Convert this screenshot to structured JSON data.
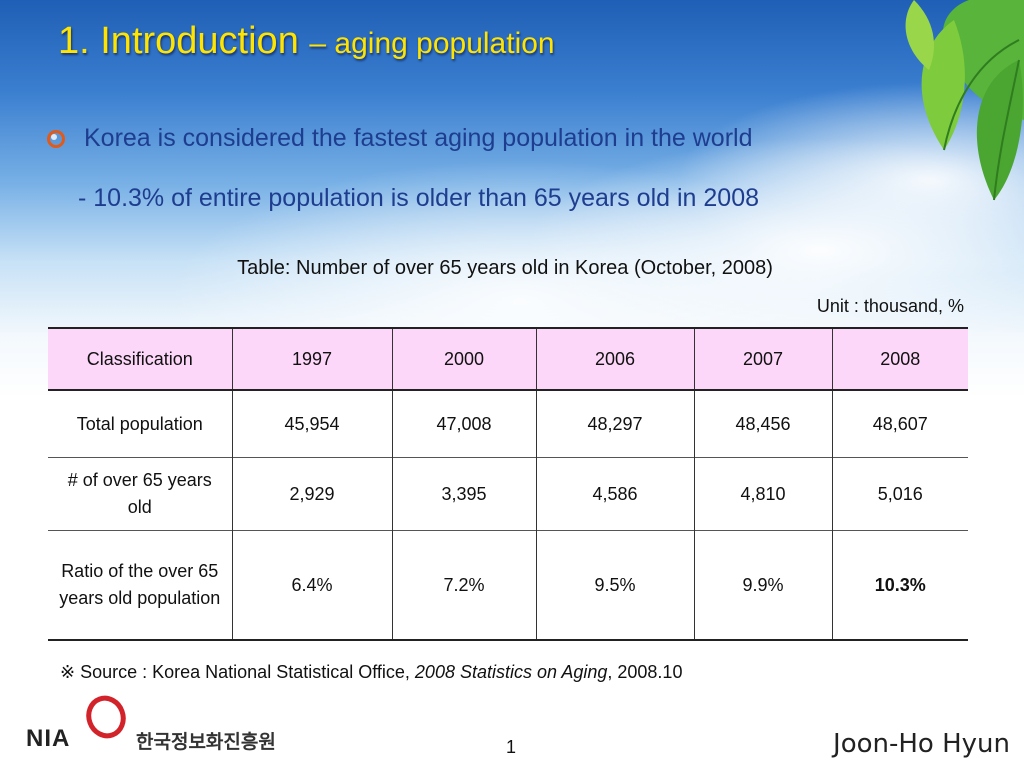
{
  "slide": {
    "title": "1. Introduction",
    "title_suffix": "– aging population",
    "bullet": "Korea is considered the fastest aging population in the world",
    "sub_bullet": "- 10.3% of entire population is older than 65 years old in 2008",
    "table_caption": "Table: Number of over 65 years old in Korea (October, 2008)",
    "unit": "Unit : thousand, %",
    "table": {
      "header": [
        "Classification",
        "1997",
        "2000",
        "2006",
        "2007",
        "2008"
      ],
      "rows": [
        [
          "Total population",
          "45,954",
          "47,008",
          "48,297",
          "48,456",
          "48,607"
        ],
        [
          "# of over 65 years old",
          "2,929",
          "3,395",
          "4,586",
          "4,810",
          "5,016"
        ],
        [
          "Ratio of the over 65 years old population",
          "6.4%",
          "7.2%",
          "9.5%",
          "9.9%",
          "10.3%"
        ]
      ]
    },
    "source": {
      "prefix": "※ Source : Korea National Statistical Office, ",
      "publication": "2008 Statistics on Aging",
      "suffix": ", 2008.10"
    },
    "footer": {
      "logo_text": "NIA",
      "logo_korean": "한국정보화진흥원",
      "page_number": "1",
      "author": "Joon-Ho Hyun"
    }
  },
  "colors": {
    "title": "#ffe400",
    "body_text": "#1e3d8f",
    "table_header_bg": "#fdd7f9",
    "logo_accent": "#d2232a"
  },
  "icons": [
    "bullet-ring-icon",
    "leaves-decoration-icon",
    "nia-ring-logo-icon"
  ]
}
